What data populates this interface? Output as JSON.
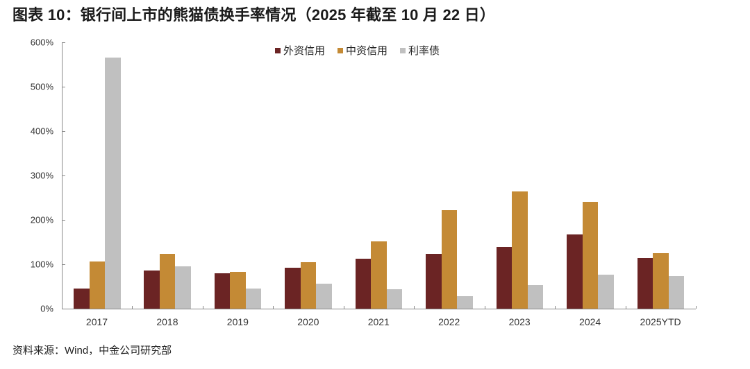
{
  "title": "图表 10：银行间上市的熊猫债换手率情况（2025 年截至 10 月 22 日）",
  "source": "资料来源：Wind，中金公司研究部",
  "chart_data": {
    "type": "bar",
    "title": "图表 10：银行间上市的熊猫债换手率情况（2025 年截至 10 月 22 日）",
    "xlabel": "",
    "ylabel": "",
    "ylim": [
      0,
      600
    ],
    "yticks": [
      "0%",
      "100%",
      "200%",
      "300%",
      "400%",
      "500%",
      "600%"
    ],
    "grid": false,
    "legend_position": "top-center",
    "categories": [
      "2017",
      "2018",
      "2019",
      "2020",
      "2021",
      "2022",
      "2023",
      "2024",
      "2025YTD"
    ],
    "series": [
      {
        "name": "外资信用",
        "color": "#6b2424",
        "values": [
          46,
          86,
          80,
          92,
          113,
          124,
          139,
          167,
          114
        ]
      },
      {
        "name": "中资信用",
        "color": "#c48a35",
        "values": [
          106,
          124,
          83,
          104,
          152,
          222,
          264,
          241,
          125
        ]
      },
      {
        "name": "利率债",
        "color": "#c0c0c0",
        "values": [
          565,
          95,
          45,
          56,
          44,
          28,
          53,
          77,
          74
        ]
      }
    ]
  }
}
